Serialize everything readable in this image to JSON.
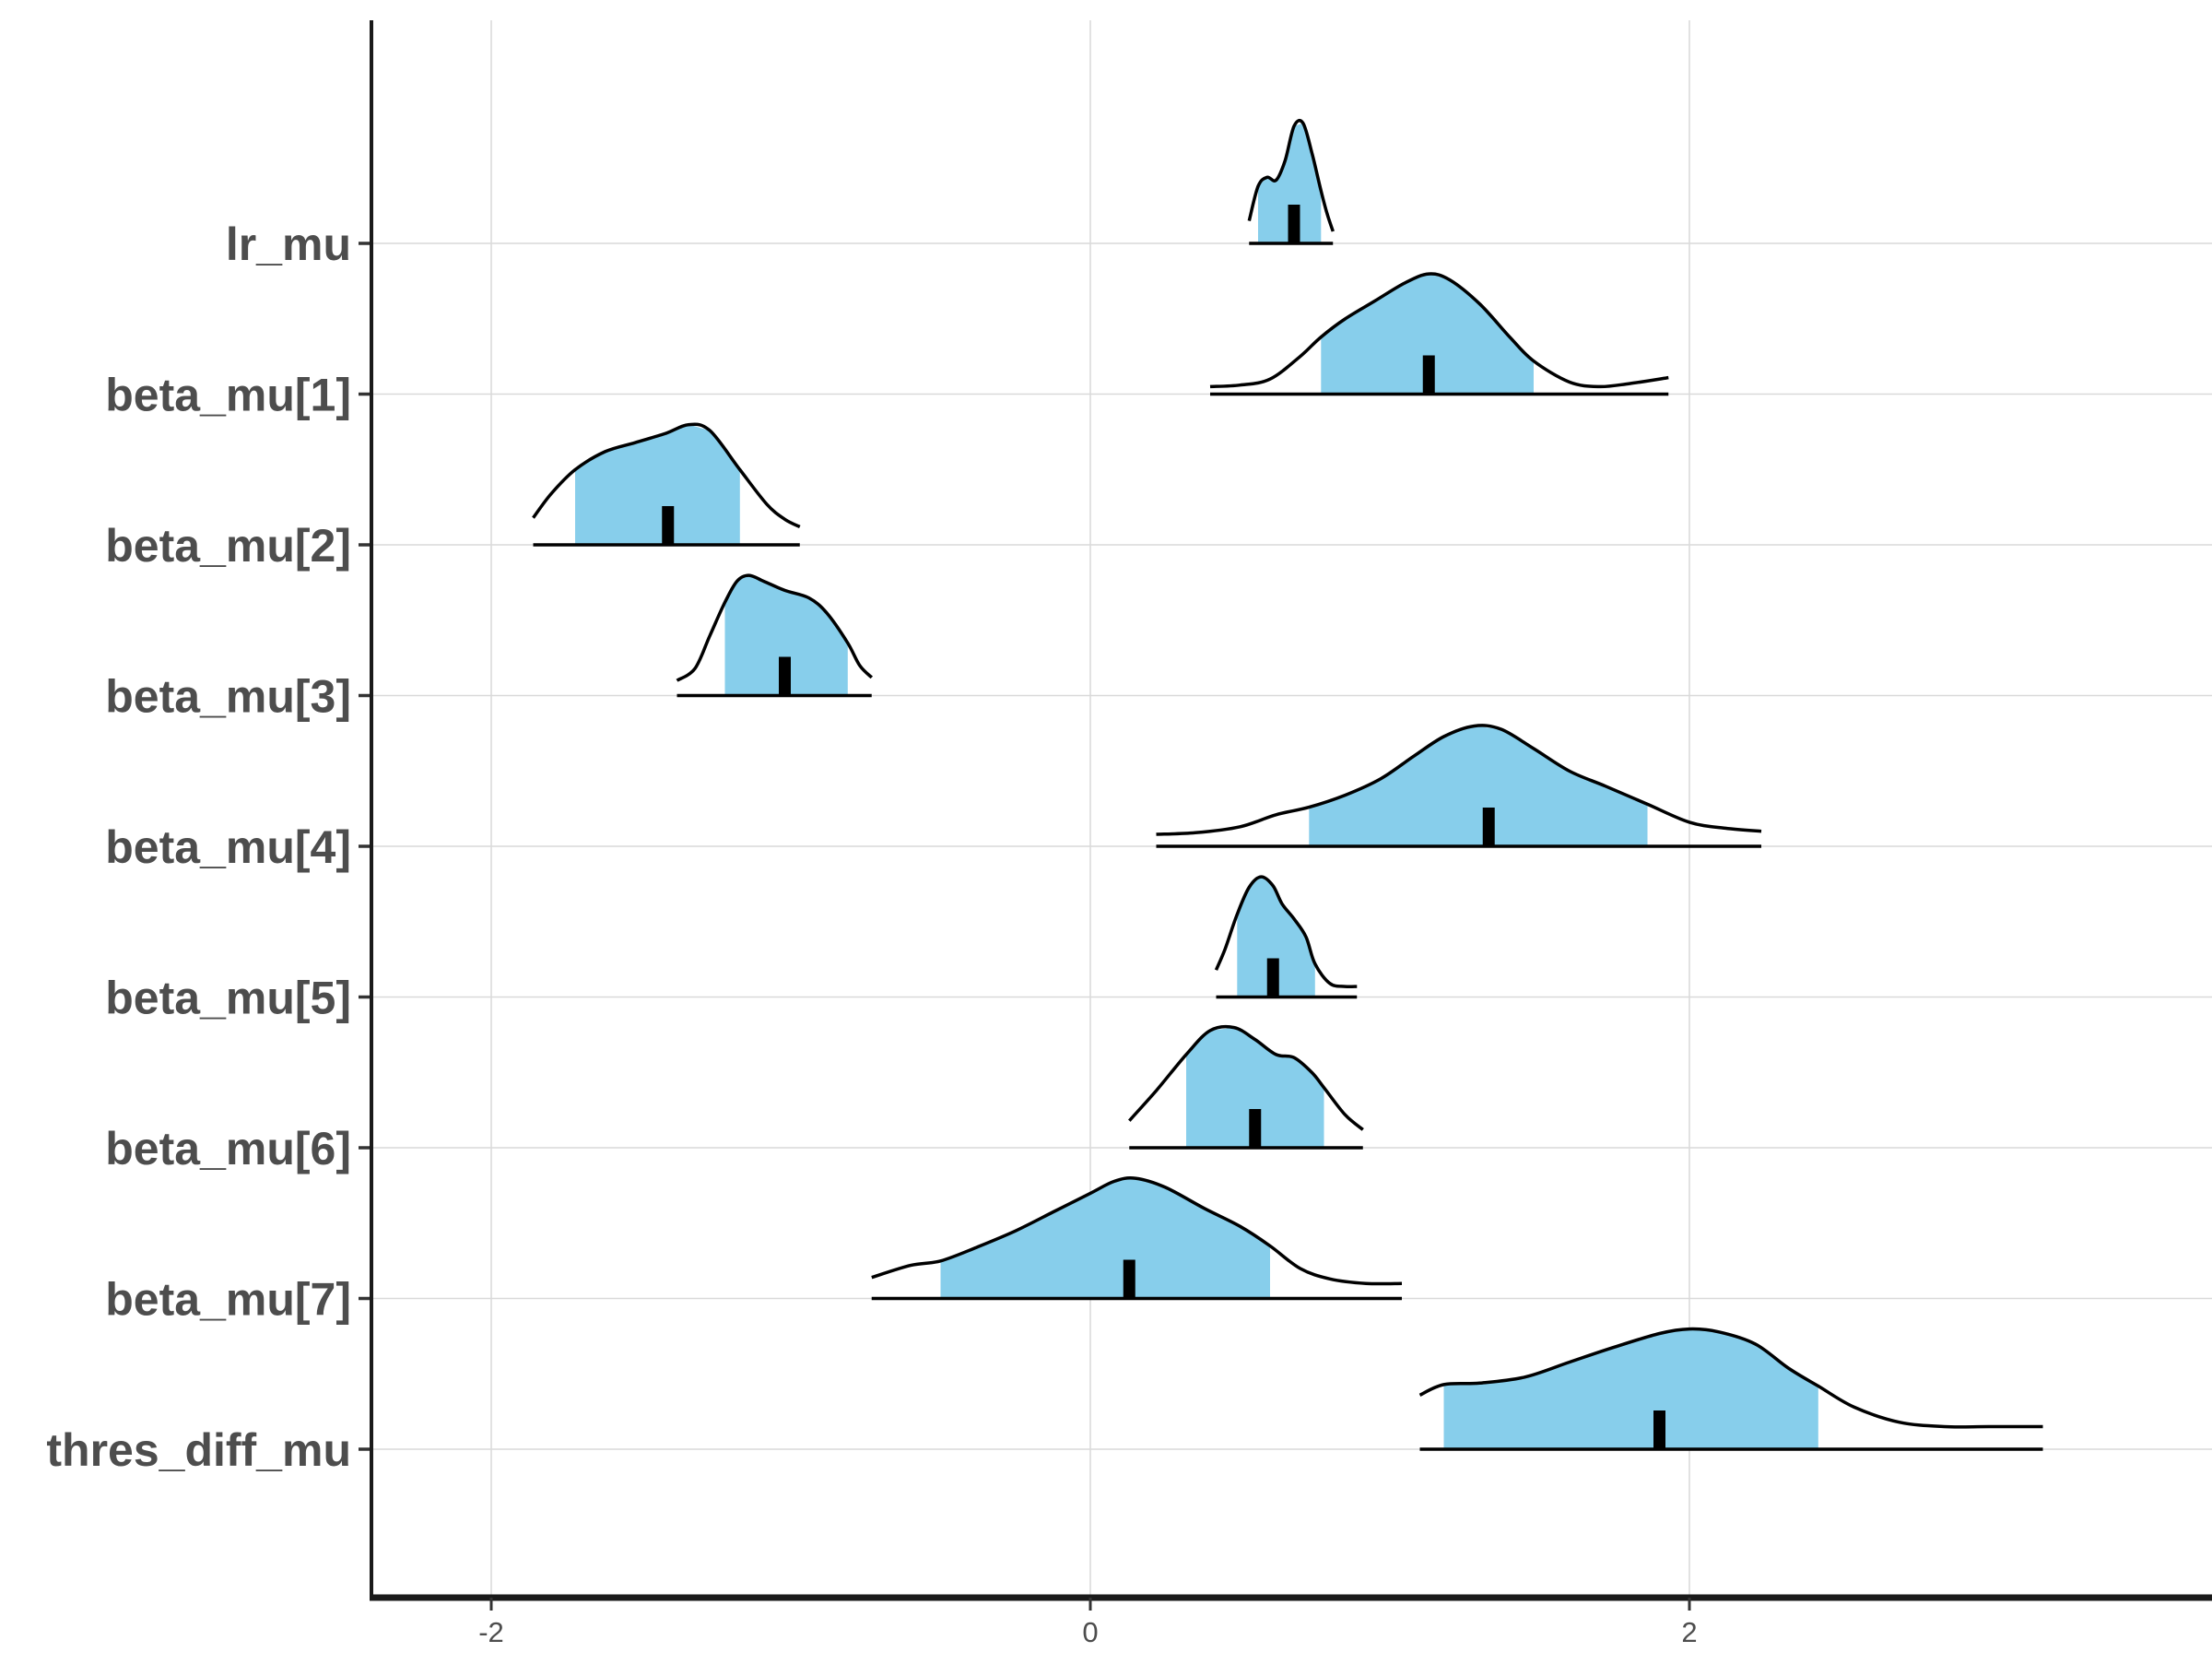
{
  "chart_data": {
    "type": "ridgeline",
    "title": "",
    "xlabel": "",
    "ylabel": "",
    "xlim": [
      -2.4,
      3.7
    ],
    "x_ticks": [
      -2,
      0,
      2
    ],
    "x_tick_labels": [
      "-2",
      "0",
      "2"
    ],
    "grid": true,
    "legend": "none",
    "fill_color": "#87CEEB",
    "line_color": "#000000",
    "parameters": [
      {
        "name": "lr_mu",
        "median": 0.68,
        "ci_inner": [
          0.56,
          0.77
        ],
        "range": [
          0.53,
          0.81
        ],
        "density": [
          [
            0.53,
            0.15
          ],
          [
            0.56,
            0.38
          ],
          [
            0.59,
            0.44
          ],
          [
            0.62,
            0.42
          ],
          [
            0.65,
            0.55
          ],
          [
            0.68,
            0.78
          ],
          [
            0.71,
            0.8
          ],
          [
            0.74,
            0.6
          ],
          [
            0.77,
            0.35
          ],
          [
            0.79,
            0.2
          ],
          [
            0.81,
            0.08
          ]
        ]
      },
      {
        "name": "beta_mu[1]",
        "median": 1.13,
        "ci_inner": [
          0.77,
          1.48
        ],
        "range": [
          0.4,
          1.93
        ],
        "density": [
          [
            0.4,
            0.05
          ],
          [
            0.5,
            0.06
          ],
          [
            0.6,
            0.1
          ],
          [
            0.7,
            0.25
          ],
          [
            0.77,
            0.38
          ],
          [
            0.85,
            0.5
          ],
          [
            0.95,
            0.62
          ],
          [
            1.05,
            0.74
          ],
          [
            1.13,
            0.8
          ],
          [
            1.2,
            0.76
          ],
          [
            1.3,
            0.6
          ],
          [
            1.4,
            0.38
          ],
          [
            1.48,
            0.22
          ],
          [
            1.6,
            0.08
          ],
          [
            1.7,
            0.05
          ],
          [
            1.8,
            0.07
          ],
          [
            1.93,
            0.11
          ]
        ]
      },
      {
        "name": "beta_mu[2]",
        "median": -1.41,
        "ci_inner": [
          -1.72,
          -1.17
        ],
        "range": [
          -1.86,
          -0.97
        ],
        "density": [
          [
            -1.86,
            0.18
          ],
          [
            -1.8,
            0.34
          ],
          [
            -1.72,
            0.5
          ],
          [
            -1.62,
            0.62
          ],
          [
            -1.52,
            0.68
          ],
          [
            -1.42,
            0.74
          ],
          [
            -1.34,
            0.8
          ],
          [
            -1.27,
            0.76
          ],
          [
            -1.17,
            0.5
          ],
          [
            -1.08,
            0.27
          ],
          [
            -1.02,
            0.17
          ],
          [
            -0.97,
            0.12
          ]
        ]
      },
      {
        "name": "beta_mu[3]",
        "median": -1.02,
        "ci_inner": [
          -1.22,
          -0.81
        ],
        "range": [
          -1.38,
          -0.73
        ],
        "density": [
          [
            -1.38,
            0.1
          ],
          [
            -1.32,
            0.18
          ],
          [
            -1.27,
            0.4
          ],
          [
            -1.22,
            0.62
          ],
          [
            -1.18,
            0.76
          ],
          [
            -1.14,
            0.8
          ],
          [
            -1.09,
            0.76
          ],
          [
            -1.02,
            0.7
          ],
          [
            -0.94,
            0.65
          ],
          [
            -0.88,
            0.55
          ],
          [
            -0.81,
            0.35
          ],
          [
            -0.77,
            0.2
          ],
          [
            -0.73,
            0.12
          ]
        ]
      },
      {
        "name": "beta_mu[4]",
        "median": 1.33,
        "ci_inner": [
          0.73,
          1.86
        ],
        "range": [
          0.22,
          2.24
        ],
        "density": [
          [
            0.22,
            0.08
          ],
          [
            0.35,
            0.09
          ],
          [
            0.5,
            0.13
          ],
          [
            0.62,
            0.21
          ],
          [
            0.73,
            0.26
          ],
          [
            0.85,
            0.34
          ],
          [
            0.97,
            0.45
          ],
          [
            1.08,
            0.6
          ],
          [
            1.18,
            0.73
          ],
          [
            1.28,
            0.8
          ],
          [
            1.37,
            0.78
          ],
          [
            1.48,
            0.65
          ],
          [
            1.6,
            0.5
          ],
          [
            1.72,
            0.4
          ],
          [
            1.86,
            0.28
          ],
          [
            2.0,
            0.16
          ],
          [
            2.12,
            0.12
          ],
          [
            2.24,
            0.1
          ]
        ]
      },
      {
        "name": "beta_mu[5]",
        "median": 0.61,
        "ci_inner": [
          0.49,
          0.75
        ],
        "range": [
          0.42,
          0.89
        ],
        "density": [
          [
            0.42,
            0.18
          ],
          [
            0.45,
            0.32
          ],
          [
            0.49,
            0.55
          ],
          [
            0.53,
            0.73
          ],
          [
            0.57,
            0.8
          ],
          [
            0.61,
            0.74
          ],
          [
            0.64,
            0.62
          ],
          [
            0.68,
            0.52
          ],
          [
            0.72,
            0.4
          ],
          [
            0.75,
            0.22
          ],
          [
            0.8,
            0.09
          ],
          [
            0.85,
            0.07
          ],
          [
            0.89,
            0.07
          ]
        ]
      },
      {
        "name": "beta_mu[6]",
        "median": 0.55,
        "ci_inner": [
          0.32,
          0.78
        ],
        "range": [
          0.13,
          0.91
        ],
        "density": [
          [
            0.13,
            0.18
          ],
          [
            0.22,
            0.38
          ],
          [
            0.32,
            0.62
          ],
          [
            0.4,
            0.78
          ],
          [
            0.48,
            0.8
          ],
          [
            0.55,
            0.72
          ],
          [
            0.62,
            0.62
          ],
          [
            0.68,
            0.6
          ],
          [
            0.74,
            0.5
          ],
          [
            0.78,
            0.4
          ],
          [
            0.85,
            0.22
          ],
          [
            0.91,
            0.12
          ]
        ]
      },
      {
        "name": "beta_mu[7]",
        "median": 0.13,
        "ci_inner": [
          -0.5,
          0.6
        ],
        "range": [
          -0.73,
          1.04
        ],
        "density": [
          [
            -0.73,
            0.14
          ],
          [
            -0.6,
            0.22
          ],
          [
            -0.5,
            0.25
          ],
          [
            -0.38,
            0.34
          ],
          [
            -0.25,
            0.45
          ],
          [
            -0.12,
            0.58
          ],
          [
            0.0,
            0.7
          ],
          [
            0.08,
            0.78
          ],
          [
            0.15,
            0.8
          ],
          [
            0.25,
            0.74
          ],
          [
            0.38,
            0.6
          ],
          [
            0.5,
            0.48
          ],
          [
            0.6,
            0.35
          ],
          [
            0.7,
            0.2
          ],
          [
            0.8,
            0.13
          ],
          [
            0.92,
            0.1
          ],
          [
            1.04,
            0.1
          ]
        ]
      },
      {
        "name": "thres_diff_mu",
        "median": 1.9,
        "ci_inner": [
          1.18,
          2.43
        ],
        "range": [
          1.1,
          3.18
        ],
        "density": [
          [
            1.1,
            0.36
          ],
          [
            1.18,
            0.43
          ],
          [
            1.3,
            0.44
          ],
          [
            1.45,
            0.48
          ],
          [
            1.6,
            0.58
          ],
          [
            1.75,
            0.68
          ],
          [
            1.9,
            0.77
          ],
          [
            2.0,
            0.8
          ],
          [
            2.1,
            0.78
          ],
          [
            2.22,
            0.7
          ],
          [
            2.33,
            0.54
          ],
          [
            2.43,
            0.42
          ],
          [
            2.55,
            0.28
          ],
          [
            2.7,
            0.18
          ],
          [
            2.85,
            0.15
          ],
          [
            3.0,
            0.15
          ],
          [
            3.18,
            0.15
          ]
        ]
      }
    ]
  }
}
